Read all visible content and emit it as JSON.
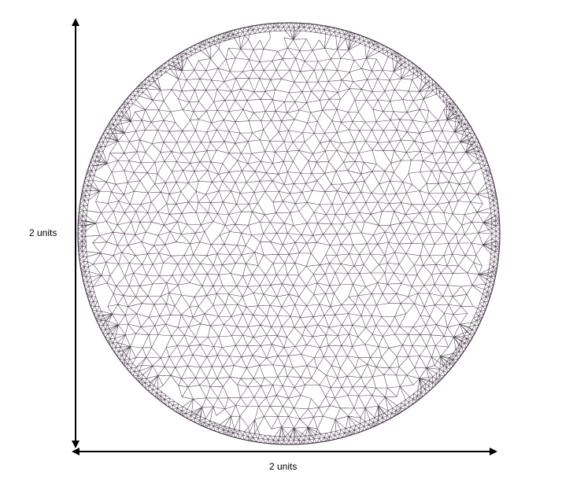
{
  "diagram": {
    "height_label": "2 units",
    "width_label": "2 units",
    "shape": "circle",
    "mesh": "triangular",
    "mesh_boundary_refinement": true,
    "colors": {
      "mesh_stroke": "#4a3b4c",
      "arrow": "#000000",
      "background": "#ffffff"
    }
  }
}
